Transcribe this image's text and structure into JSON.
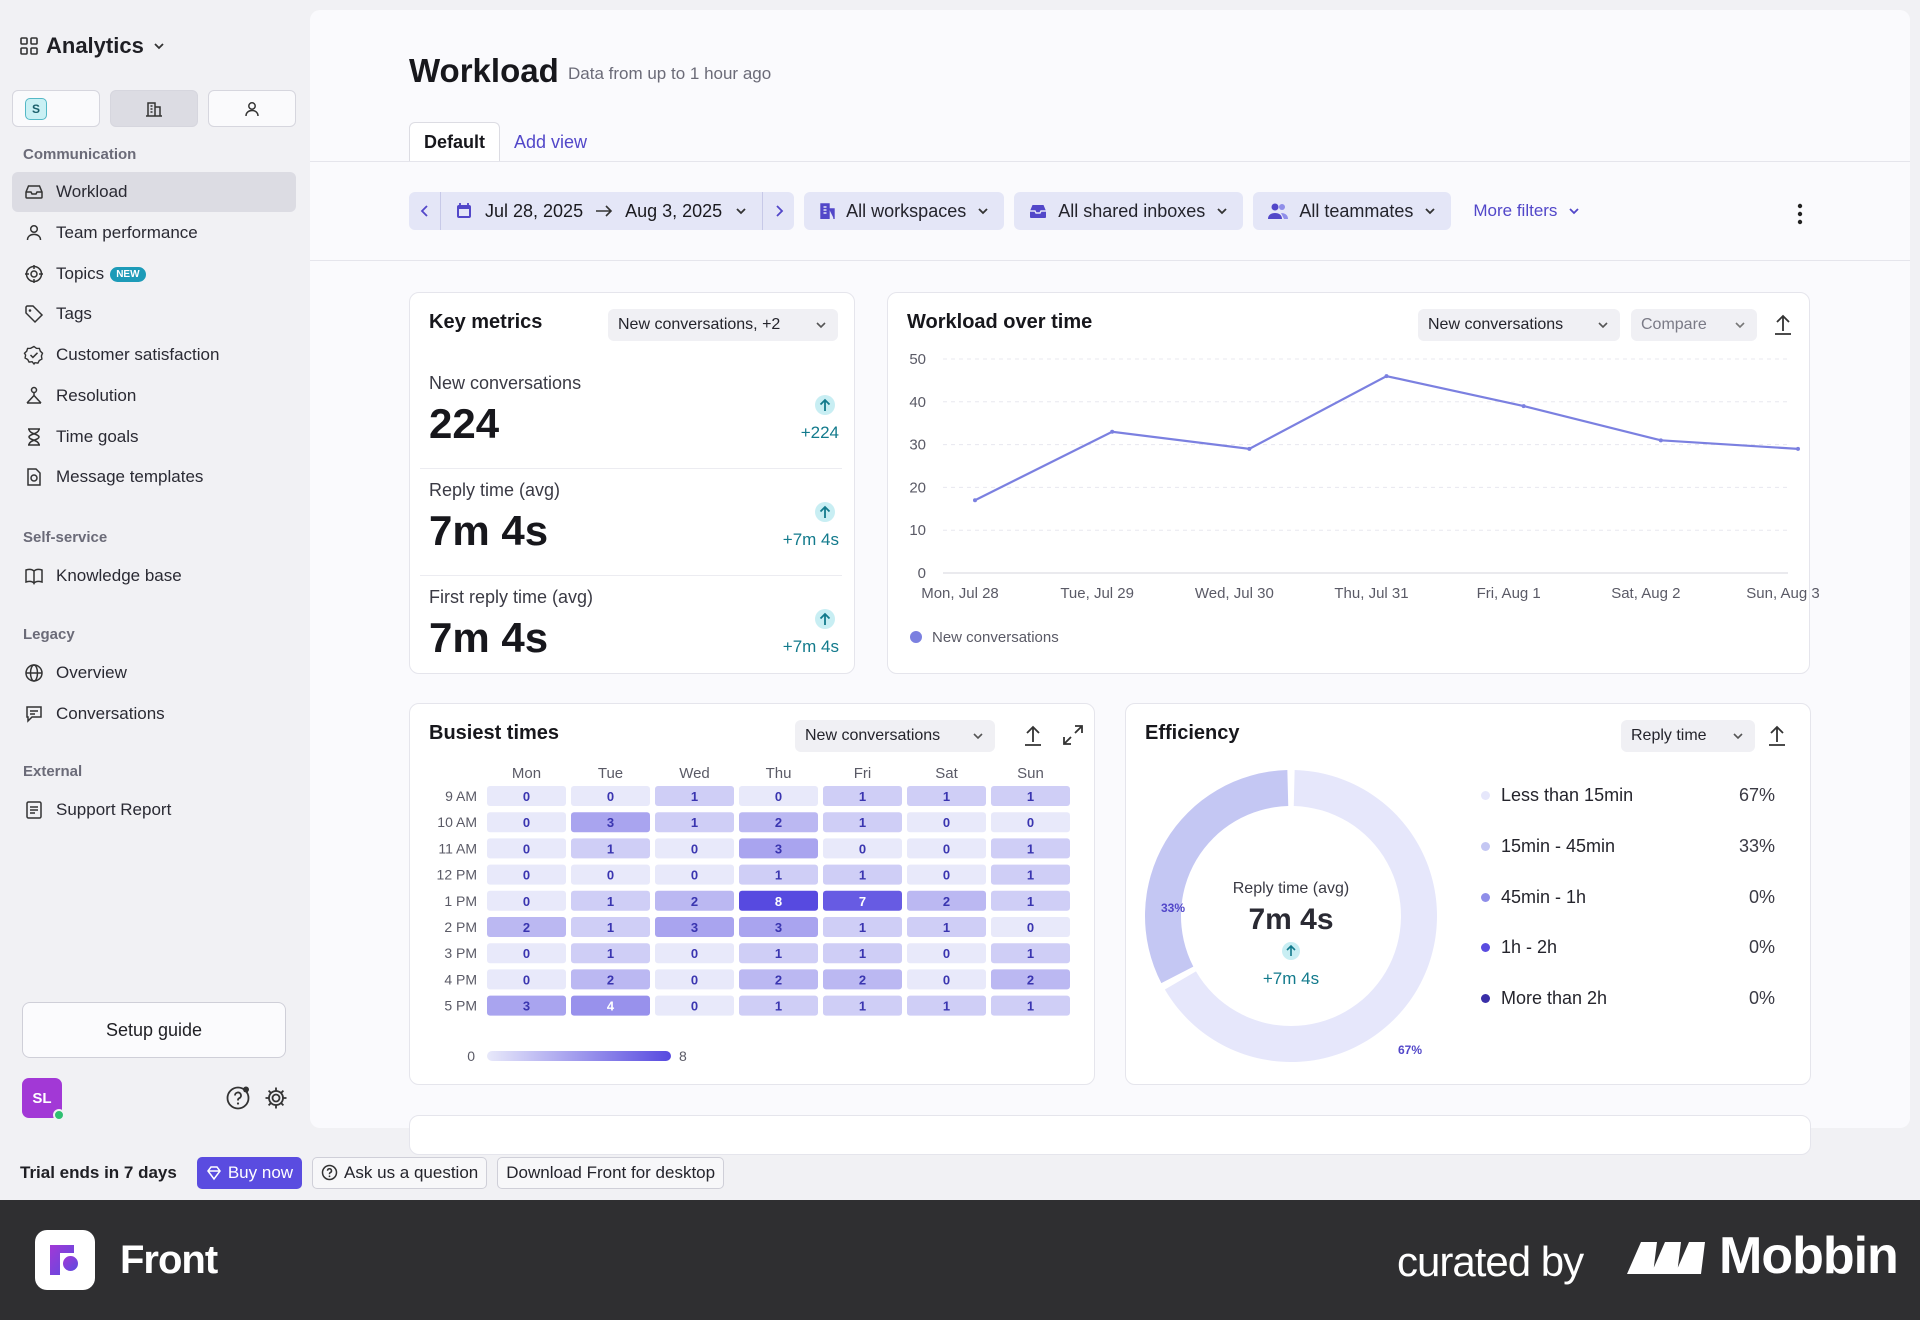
{
  "app": {
    "title": "Analytics",
    "workspace_badge": "S"
  },
  "sidebar": {
    "sections": [
      {
        "label": "Communication",
        "items": [
          {
            "label": "Workload",
            "icon": "inbox-icon",
            "active": true
          },
          {
            "label": "Team performance",
            "icon": "person-icon"
          },
          {
            "label": "Topics",
            "icon": "target-icon",
            "badge": "NEW"
          },
          {
            "label": "Tags",
            "icon": "tag-icon"
          },
          {
            "label": "Customer satisfaction",
            "icon": "badge-check-icon"
          },
          {
            "label": "Resolution",
            "icon": "network-icon"
          },
          {
            "label": "Time goals",
            "icon": "hourglass-icon"
          },
          {
            "label": "Message templates",
            "icon": "template-icon"
          }
        ]
      },
      {
        "label": "Self-service",
        "items": [
          {
            "label": "Knowledge base",
            "icon": "book-icon"
          }
        ]
      },
      {
        "label": "Legacy",
        "items": [
          {
            "label": "Overview",
            "icon": "globe-icon"
          },
          {
            "label": "Conversations",
            "icon": "chat-icon"
          }
        ]
      },
      {
        "label": "External",
        "items": [
          {
            "label": "Support Report",
            "icon": "report-icon"
          }
        ]
      }
    ],
    "setup_guide": "Setup guide",
    "avatar_initials": "SL"
  },
  "header": {
    "title": "Workload",
    "subtitle": "Data from up to 1 hour ago",
    "tabs": [
      {
        "label": "Default"
      },
      {
        "label": "Add view"
      }
    ]
  },
  "filters": {
    "date_start": "Jul 28, 2025",
    "date_end": "Aug 3, 2025",
    "workspaces": "All workspaces",
    "inboxes": "All shared inboxes",
    "teammates": "All teammates",
    "more": "More filters"
  },
  "key_metrics": {
    "title": "Key metrics",
    "selector": "New conversations, +2",
    "items": [
      {
        "label": "New conversations",
        "value": "224",
        "delta": "+224"
      },
      {
        "label": "Reply time (avg)",
        "value": "7m 4s",
        "delta": "+7m 4s"
      },
      {
        "label": "First reply time (avg)",
        "value": "7m 4s",
        "delta": "+7m 4s"
      }
    ]
  },
  "workload_over_time": {
    "title": "Workload over time",
    "metric": "New conversations",
    "compare": "Compare",
    "legend": "New conversations"
  },
  "busiest_times": {
    "title": "Busiest times",
    "metric": "New conversations",
    "scale_min": "0",
    "scale_max": "8"
  },
  "efficiency": {
    "title": "Efficiency",
    "metric": "Reply time",
    "center_label": "Reply time (avg)",
    "center_value": "7m 4s",
    "center_delta": "+7m 4s",
    "slice_labels": [
      "33%",
      "67%"
    ],
    "legend": [
      {
        "label": "Less than 15min",
        "pct": "67%",
        "color": "#e6e7fb"
      },
      {
        "label": "15min - 45min",
        "pct": "33%",
        "color": "#c4c7f3"
      },
      {
        "label": "45min - 1h",
        "pct": "0%",
        "color": "#8f8ee9"
      },
      {
        "label": "1h - 2h",
        "pct": "0%",
        "color": "#5a4ce0"
      },
      {
        "label": "More than 2h",
        "pct": "0%",
        "color": "#3a2fa8"
      }
    ]
  },
  "bottom_bar": {
    "trial": "Trial ends in 7 days",
    "buy": "Buy now",
    "ask": "Ask us a question",
    "download": "Download Front for desktop"
  },
  "banner": {
    "app_name": "Front",
    "curated_by": "curated by",
    "brand": "Mobbin"
  },
  "chart_data": [
    {
      "type": "line",
      "title": "Workload over time",
      "categories": [
        "Mon, Jul 28",
        "Tue, Jul 29",
        "Wed, Jul 30",
        "Thu, Jul 31",
        "Fri, Aug 1",
        "Sat, Aug 2",
        "Sun, Aug 3"
      ],
      "series": [
        {
          "name": "New conversations",
          "values": [
            17,
            33,
            29,
            46,
            39,
            31,
            29
          ],
          "color": "#7b80e0"
        }
      ],
      "ylim": [
        0,
        50
      ],
      "yticks": [
        0,
        10,
        20,
        30,
        40,
        50
      ],
      "grid": true,
      "legend_position": "bottom-left"
    },
    {
      "type": "heatmap",
      "title": "Busiest times",
      "x": [
        "Mon",
        "Tue",
        "Wed",
        "Thu",
        "Fri",
        "Sat",
        "Sun"
      ],
      "y": [
        "9 AM",
        "10 AM",
        "11 AM",
        "12 PM",
        "1 PM",
        "2 PM",
        "3 PM",
        "4 PM",
        "5 PM"
      ],
      "values": [
        [
          0,
          0,
          1,
          0,
          1,
          1,
          1
        ],
        [
          0,
          3,
          1,
          2,
          1,
          0,
          0
        ],
        [
          0,
          1,
          0,
          3,
          0,
          0,
          1
        ],
        [
          0,
          0,
          0,
          1,
          1,
          0,
          1
        ],
        [
          0,
          1,
          2,
          8,
          7,
          2,
          1
        ],
        [
          2,
          1,
          3,
          3,
          1,
          1,
          0
        ],
        [
          0,
          1,
          0,
          1,
          1,
          0,
          1
        ],
        [
          0,
          2,
          0,
          2,
          2,
          0,
          2
        ],
        [
          3,
          4,
          0,
          1,
          1,
          1,
          1
        ]
      ],
      "scale": [
        0,
        8
      ]
    },
    {
      "type": "pie",
      "title": "Efficiency",
      "labels": [
        "Less than 15min",
        "15min - 45min",
        "45min - 1h",
        "1h - 2h",
        "More than 2h"
      ],
      "values": [
        67,
        33,
        0,
        0,
        0
      ],
      "colors": [
        "#e6e7fb",
        "#c4c7f3",
        "#8f8ee9",
        "#5a4ce0",
        "#3a2fa8"
      ]
    }
  ]
}
